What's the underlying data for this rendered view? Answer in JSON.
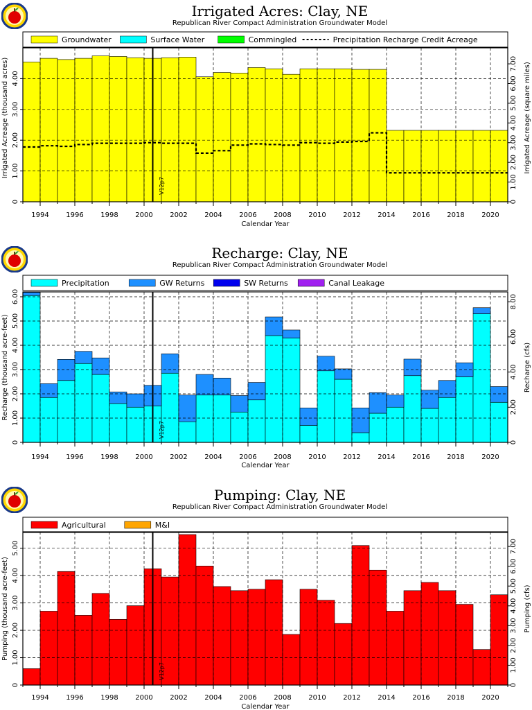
{
  "chart_data": [
    {
      "type": "area",
      "title": "Irrigated Acres: Clay, NE",
      "subtitle": "Republican River Compact Administration Groundwater Model",
      "xlabel": "Calendar Year",
      "ylabel": "Irrigated Acreage (thousand acres)",
      "ylabel_right": "Irrigated Acreage (square miles)",
      "xlim": [
        1993,
        2021
      ],
      "ylim": [
        0,
        125
      ],
      "ylim_right": [
        0,
        195.3
      ],
      "x_ticks": [
        "1994",
        "1996",
        "1998",
        "2000",
        "2002",
        "2004",
        "2006",
        "2008",
        "2010",
        "2012",
        "2014",
        "2016",
        "2018",
        "2020"
      ],
      "y_ticks": [
        {
          "v": 0,
          "t": "0"
        },
        {
          "v": 25,
          "t": "1.00"
        },
        {
          "v": 50,
          "t": "2.00"
        },
        {
          "v": 75,
          "t": "3.00"
        },
        {
          "v": 100,
          "t": "4.00"
        }
      ],
      "y_ticks_right": [
        {
          "v": 0,
          "t": "0"
        },
        {
          "v": 25,
          "t": "1.00"
        },
        {
          "v": 50,
          "t": "2.00"
        },
        {
          "v": 75,
          "t": "3.00"
        },
        {
          "v": 100,
          "t": "4.00"
        },
        {
          "v": 125,
          "t": "5.00"
        },
        {
          "v": 150,
          "t": "6.00"
        },
        {
          "v": 175,
          "t": "7.00"
        }
      ],
      "marker": {
        "x": 2000.5,
        "label": "V12p7"
      },
      "legend_position": "top",
      "grid": true,
      "years": [
        1993,
        1994,
        1995,
        1996,
        1997,
        1998,
        1999,
        2000,
        2001,
        2002,
        2003,
        2004,
        2005,
        2006,
        2007,
        2008,
        2009,
        2010,
        2011,
        2012,
        2013,
        2014,
        2015,
        2016,
        2017,
        2018,
        2019,
        2020
      ],
      "series": [
        {
          "name": "Groundwater",
          "color": "#ffff00",
          "style": "step-fill",
          "values": [
            113.5,
            116.5,
            115.5,
            116.5,
            118.5,
            118,
            117,
            116.5,
            117,
            117.5,
            101.5,
            105,
            104.5,
            109,
            108,
            103.5,
            108,
            108,
            108,
            107.5,
            107.5,
            58,
            58,
            58,
            58,
            58,
            58,
            58
          ]
        },
        {
          "name": "Surface Water",
          "color": "#00ffff",
          "style": "step-fill",
          "values": [
            0,
            0,
            0,
            0,
            0,
            0,
            0,
            0,
            0,
            0,
            0,
            0,
            0,
            0,
            0,
            0,
            0,
            0,
            0,
            0,
            0,
            0,
            0,
            0,
            0,
            0,
            0,
            0
          ]
        },
        {
          "name": "Commingled",
          "color": "#00ff00",
          "style": "step-fill",
          "values": [
            0,
            0,
            0,
            0,
            0,
            0,
            0,
            0,
            0,
            0,
            0,
            0,
            0,
            0,
            0,
            0,
            0,
            0,
            0,
            0,
            0,
            0,
            0,
            0,
            0,
            0,
            0,
            0
          ]
        },
        {
          "name": "Precipitation Recharge Credit Acreage",
          "color": "#000000",
          "style": "dashed-step",
          "values": [
            44.5,
            45.5,
            45,
            46.5,
            47.5,
            47.5,
            47.5,
            48,
            47.5,
            47.5,
            39.5,
            41.5,
            46,
            47,
            46.5,
            46,
            48,
            47.5,
            48.5,
            49,
            56,
            23.5,
            23.5,
            23.5,
            23.5,
            23.5,
            23.5,
            23.5
          ]
        }
      ]
    },
    {
      "type": "area",
      "title": "Recharge: Clay, NE",
      "subtitle": "Republican River Compact Administration Groundwater Model",
      "xlabel": "Calendar Year",
      "ylabel": "Recharge (thousand acre-feet)",
      "ylabel_right": "Recharge (cfs)",
      "xlim": [
        1993,
        2021
      ],
      "ylim": [
        0,
        6.2
      ],
      "ylim_right": [
        0,
        8.56
      ],
      "x_ticks": [
        "1994",
        "1996",
        "1998",
        "2000",
        "2002",
        "2004",
        "2006",
        "2008",
        "2010",
        "2012",
        "2014",
        "2016",
        "2018",
        "2020"
      ],
      "y_ticks": [
        {
          "v": 0,
          "t": "0"
        },
        {
          "v": 1,
          "t": "1.00"
        },
        {
          "v": 2,
          "t": "2.00"
        },
        {
          "v": 3,
          "t": "3.00"
        },
        {
          "v": 4,
          "t": "4.00"
        },
        {
          "v": 5,
          "t": "5.00"
        },
        {
          "v": 6,
          "t": "6.00"
        }
      ],
      "y_ticks_right": [
        {
          "v": 0,
          "t": "0"
        },
        {
          "v": 2,
          "t": "2.00"
        },
        {
          "v": 4,
          "t": "4.00"
        },
        {
          "v": 6,
          "t": "6.00"
        },
        {
          "v": 8,
          "t": "8.00"
        }
      ],
      "marker": {
        "x": 2000.5,
        "label": "V12p7"
      },
      "legend_position": "top",
      "grid": true,
      "years": [
        1993,
        1994,
        1995,
        1996,
        1997,
        1998,
        1999,
        2000,
        2001,
        2002,
        2003,
        2004,
        2005,
        2006,
        2007,
        2008,
        2009,
        2010,
        2011,
        2012,
        2013,
        2014,
        2015,
        2016,
        2017,
        2018,
        2019,
        2020
      ],
      "series": [
        {
          "name": "Precipitation",
          "color": "#00ffff",
          "style": "stack",
          "values": [
            6.05,
            1.85,
            2.55,
            3.25,
            2.8,
            1.6,
            1.45,
            1.5,
            2.85,
            0.85,
            1.95,
            1.95,
            1.25,
            1.75,
            4.4,
            4.3,
            0.7,
            2.95,
            2.6,
            0.4,
            1.2,
            1.45,
            2.75,
            1.4,
            1.85,
            2.7,
            5.3,
            1.65
          ]
        },
        {
          "name": "GW Returns",
          "color": "#1e90ff",
          "style": "stack",
          "values": [
            0.13,
            0.57,
            0.87,
            0.5,
            0.68,
            0.48,
            0.55,
            0.85,
            0.8,
            1.1,
            0.85,
            0.7,
            0.68,
            0.72,
            0.77,
            0.33,
            0.72,
            0.6,
            0.43,
            1.02,
            0.85,
            0.5,
            0.68,
            0.75,
            0.7,
            0.58,
            0.25,
            0.65
          ]
        },
        {
          "name": "SW Returns",
          "color": "#0000ee",
          "style": "stack",
          "values": [
            0,
            0,
            0,
            0,
            0,
            0,
            0,
            0,
            0,
            0,
            0,
            0,
            0,
            0,
            0,
            0,
            0,
            0,
            0,
            0,
            0,
            0,
            0,
            0,
            0,
            0,
            0,
            0
          ]
        },
        {
          "name": "Canal Leakage",
          "color": "#a020f0",
          "style": "stack",
          "values": [
            0,
            0,
            0,
            0,
            0,
            0,
            0,
            0,
            0,
            0,
            0,
            0,
            0,
            0,
            0,
            0,
            0,
            0,
            0,
            0,
            0,
            0,
            0,
            0,
            0,
            0,
            0,
            0
          ]
        }
      ]
    },
    {
      "type": "area",
      "title": "Pumping: Clay, NE",
      "subtitle": "Republican River Compact Administration Groundwater Model",
      "xlabel": "Calendar Year",
      "ylabel": "Pumping (thousand acre-feet)",
      "ylabel_right": "Pumping (cfs)",
      "xlim": [
        1993,
        2021
      ],
      "ylim": [
        0,
        5.6
      ],
      "ylim_right": [
        0,
        7.74
      ],
      "x_ticks": [
        "1994",
        "1996",
        "1998",
        "2000",
        "2002",
        "2004",
        "2006",
        "2008",
        "2010",
        "2012",
        "2014",
        "2016",
        "2018",
        "2020"
      ],
      "y_ticks": [
        {
          "v": 0,
          "t": "0"
        },
        {
          "v": 1,
          "t": "1.00"
        },
        {
          "v": 2,
          "t": "2.00"
        },
        {
          "v": 3,
          "t": "3.00"
        },
        {
          "v": 4,
          "t": "4.00"
        },
        {
          "v": 5,
          "t": "5.00"
        }
      ],
      "y_ticks_right": [
        {
          "v": 0,
          "t": "0"
        },
        {
          "v": 1,
          "t": "1.00"
        },
        {
          "v": 2,
          "t": "2.00"
        },
        {
          "v": 3,
          "t": "3.00"
        },
        {
          "v": 4,
          "t": "4.00"
        },
        {
          "v": 5,
          "t": "5.00"
        },
        {
          "v": 6,
          "t": "6.00"
        },
        {
          "v": 7,
          "t": "7.00"
        }
      ],
      "marker": {
        "x": 2000.5,
        "label": "V12p7"
      },
      "legend_position": "top",
      "grid": true,
      "years": [
        1993,
        1994,
        1995,
        1996,
        1997,
        1998,
        1999,
        2000,
        2001,
        2002,
        2003,
        2004,
        2005,
        2006,
        2007,
        2008,
        2009,
        2010,
        2011,
        2012,
        2013,
        2014,
        2015,
        2016,
        2017,
        2018,
        2019,
        2020
      ],
      "series": [
        {
          "name": "Agricultural",
          "color": "#ff0000",
          "style": "stack",
          "values": [
            0.6,
            2.7,
            4.15,
            2.55,
            3.35,
            2.4,
            2.9,
            4.25,
            3.95,
            5.5,
            4.35,
            3.6,
            3.45,
            3.5,
            3.85,
            1.85,
            3.5,
            3.1,
            2.25,
            5.1,
            4.2,
            2.7,
            3.45,
            3.75,
            3.45,
            2.95,
            1.3,
            3.3
          ]
        },
        {
          "name": "M&I",
          "color": "#ffa500",
          "style": "stack",
          "values": [
            0,
            0,
            0,
            0,
            0,
            0,
            0,
            0,
            0,
            0,
            0,
            0,
            0,
            0,
            0,
            0,
            0,
            0,
            0,
            0,
            0,
            0,
            0,
            0,
            0,
            0,
            0,
            0
          ]
        }
      ]
    }
  ]
}
